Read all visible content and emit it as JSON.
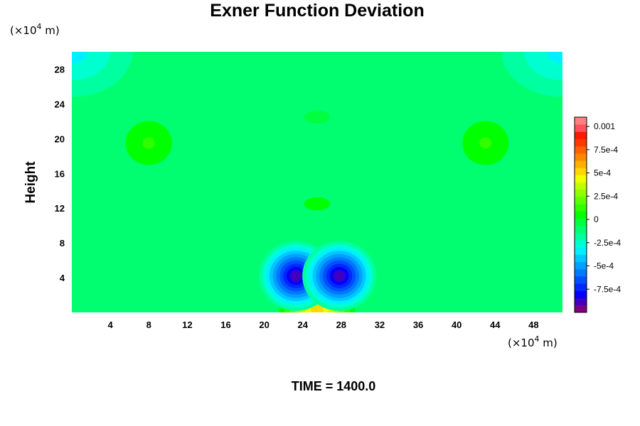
{
  "chart_data": {
    "type": "heatmap",
    "title": "Exner Function Deviation",
    "ylabel": "Height",
    "xlabel": "",
    "x_unit": {
      "prefix": "(×10",
      "exp": "4",
      "suffix": " m)"
    },
    "y_unit": {
      "prefix": "(×10",
      "exp": "4",
      "suffix": " m)"
    },
    "time_label": "TIME = 1400.0",
    "xlim": [
      0,
      51
    ],
    "ylim": [
      0,
      30
    ],
    "x_ticks": [
      4,
      8,
      12,
      16,
      20,
      24,
      28,
      32,
      36,
      40,
      44,
      48
    ],
    "y_ticks": [
      4,
      8,
      12,
      16,
      20,
      24,
      28
    ],
    "colorbar": {
      "range": [
        -0.001,
        0.0011
      ],
      "ticks": [
        {
          "value": 0.001,
          "label": "0.001"
        },
        {
          "value": 0.00075,
          "label": "7.5e-4"
        },
        {
          "value": 0.0005,
          "label": "5e-4"
        },
        {
          "value": 0.00025,
          "label": "2.5e-4"
        },
        {
          "value": 0,
          "label": "0"
        },
        {
          "value": -0.00025,
          "label": "-2.5e-4"
        },
        {
          "value": -0.0005,
          "label": "-5e-4"
        },
        {
          "value": -0.00075,
          "label": "-7.5e-4"
        }
      ],
      "colors": [
        "#800080",
        "#4000c0",
        "#0000ff",
        "#0028ff",
        "#0050ff",
        "#0078ff",
        "#00a0ff",
        "#00c8ff",
        "#00f0ff",
        "#00ffd0",
        "#00ffa0",
        "#00ff70",
        "#00ff40",
        "#00ff00",
        "#30ff00",
        "#60ff00",
        "#90ff00",
        "#c0ff00",
        "#f0ff00",
        "#ffd800",
        "#ffb000",
        "#ff8800",
        "#ff6000",
        "#ff3800",
        "#ff1800",
        "#ff5060",
        "#ff8080"
      ]
    },
    "field_features": [
      {
        "x": 23.3,
        "y": 4.2,
        "value": -0.00085
      },
      {
        "x": 27.8,
        "y": 4.2,
        "value": -0.00085
      },
      {
        "x": 25.5,
        "y": 0.3,
        "value": 0.0005
      },
      {
        "x": 0,
        "y": 30,
        "value": -0.00035
      },
      {
        "x": 51,
        "y": 30,
        "value": -0.00035
      },
      {
        "x": 8,
        "y": 19.5,
        "value": 0.0001
      },
      {
        "x": 43,
        "y": 19.5,
        "value": 0.0001
      },
      {
        "x": 25.5,
        "y": 22.5,
        "value": -2e-05
      },
      {
        "x": 25.5,
        "y": 12.5,
        "value": 4e-05
      }
    ],
    "background_value": -7e-05,
    "grid": false
  }
}
